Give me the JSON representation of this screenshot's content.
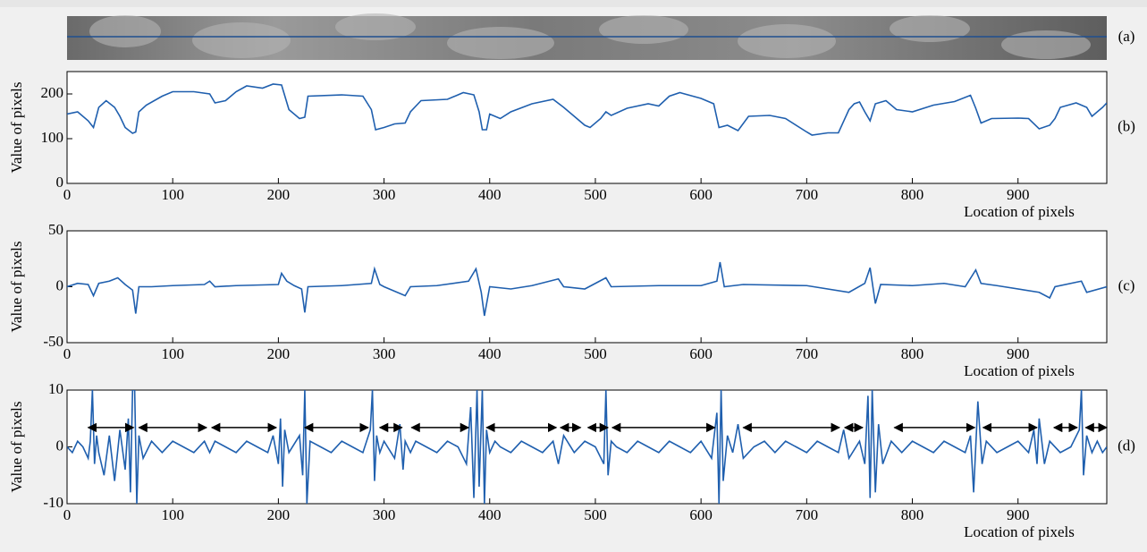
{
  "image_panel": {
    "label": "(a)"
  },
  "chart_data": [
    {
      "type": "line",
      "panel_label": "(b)",
      "x_label": "Location of pixels",
      "y_label": "Value of pixels",
      "xlim": [
        0,
        984
      ],
      "xticks": [
        0,
        100,
        200,
        300,
        400,
        500,
        600,
        700,
        800,
        900
      ],
      "ylim": [
        0,
        250
      ],
      "yticks": [
        0,
        100,
        200
      ],
      "x": [
        0,
        10,
        20,
        25,
        30,
        37,
        45,
        50,
        55,
        62,
        65,
        68,
        75,
        90,
        100,
        120,
        135,
        140,
        150,
        160,
        170,
        185,
        195,
        203,
        210,
        220,
        225,
        228,
        260,
        280,
        288,
        292,
        300,
        310,
        320,
        325,
        335,
        360,
        375,
        385,
        390,
        393,
        397,
        400,
        410,
        420,
        440,
        460,
        470,
        480,
        490,
        495,
        505,
        510,
        515,
        530,
        550,
        560,
        570,
        580,
        600,
        612,
        617,
        625,
        635,
        645,
        665,
        680,
        700,
        705,
        720,
        730,
        740,
        745,
        750,
        755,
        760,
        765,
        775,
        785,
        800,
        820,
        840,
        855,
        860,
        865,
        875,
        900,
        910,
        920,
        930,
        935,
        940,
        955,
        965,
        970,
        980,
        984
      ],
      "series": [
        {
          "name": "Value of pixels",
          "color": "#1f5fae",
          "values": [
            155,
            160,
            140,
            125,
            170,
            185,
            170,
            150,
            125,
            112,
            115,
            160,
            175,
            195,
            205,
            205,
            200,
            180,
            185,
            205,
            218,
            213,
            222,
            220,
            165,
            145,
            148,
            195,
            198,
            195,
            165,
            120,
            125,
            133,
            135,
            160,
            185,
            188,
            203,
            198,
            160,
            120,
            120,
            155,
            145,
            160,
            178,
            188,
            170,
            150,
            130,
            125,
            145,
            160,
            152,
            168,
            178,
            173,
            195,
            203,
            190,
            178,
            125,
            130,
            118,
            150,
            152,
            145,
            115,
            108,
            113,
            113,
            165,
            178,
            182,
            160,
            140,
            178,
            185,
            165,
            160,
            175,
            183,
            197,
            168,
            135,
            145,
            146,
            145,
            122,
            130,
            145,
            170,
            180,
            170,
            150,
            170,
            180
          ]
        }
      ]
    },
    {
      "type": "line",
      "panel_label": "(c)",
      "x_label": "Location of pixels",
      "y_label": "Value of pixels",
      "xlim": [
        0,
        984
      ],
      "xticks": [
        0,
        100,
        200,
        300,
        400,
        500,
        600,
        700,
        800,
        900
      ],
      "ylim": [
        -50,
        50
      ],
      "yticks": [
        -50,
        0,
        50
      ],
      "x": [
        0,
        10,
        20,
        25,
        30,
        40,
        48,
        55,
        62,
        65,
        68,
        80,
        100,
        130,
        135,
        140,
        160,
        200,
        203,
        208,
        215,
        222,
        225,
        228,
        260,
        288,
        291,
        296,
        300,
        320,
        325,
        350,
        380,
        387,
        392,
        395,
        400,
        420,
        440,
        465,
        470,
        490,
        510,
        515,
        560,
        600,
        615,
        618,
        622,
        640,
        700,
        740,
        755,
        760,
        765,
        770,
        800,
        830,
        850,
        860,
        865,
        880,
        920,
        930,
        935,
        960,
        965,
        984
      ],
      "series": [
        {
          "name": "Value of pixels",
          "color": "#1f5fae",
          "values": [
            0,
            3,
            2,
            -8,
            3,
            5,
            8,
            2,
            -3,
            -24,
            0,
            0,
            1,
            2,
            5,
            0,
            1,
            2,
            12,
            5,
            1,
            -2,
            -23,
            0,
            1,
            3,
            16,
            2,
            0,
            -8,
            0,
            1,
            5,
            16,
            -5,
            -26,
            0,
            -2,
            1,
            7,
            0,
            -2,
            8,
            0,
            1,
            1,
            5,
            22,
            0,
            2,
            1,
            -5,
            3,
            17,
            -15,
            2,
            1,
            3,
            0,
            15,
            3,
            1,
            -5,
            -10,
            0,
            5,
            -5,
            0
          ]
        }
      ]
    },
    {
      "type": "line",
      "panel_label": "(d)",
      "x_label": "Location of pixels",
      "y_label": "Value of pixels",
      "xlim": [
        0,
        984
      ],
      "xticks": [
        0,
        100,
        200,
        300,
        400,
        500,
        600,
        700,
        800,
        900
      ],
      "ylim": [
        -10,
        10
      ],
      "yticks": [
        -10,
        0,
        10
      ],
      "x": [
        0,
        5,
        10,
        15,
        20,
        22,
        24,
        26,
        28,
        30,
        35,
        40,
        45,
        50,
        55,
        58,
        60,
        62,
        64,
        66,
        68,
        72,
        80,
        90,
        100,
        110,
        120,
        130,
        135,
        140,
        150,
        160,
        170,
        180,
        190,
        195,
        200,
        202,
        204,
        206,
        210,
        220,
        223,
        225,
        227,
        230,
        240,
        250,
        260,
        270,
        280,
        287,
        289,
        291,
        293,
        296,
        300,
        310,
        315,
        318,
        320,
        325,
        330,
        340,
        350,
        360,
        370,
        378,
        382,
        385,
        388,
        390,
        393,
        395,
        397,
        400,
        405,
        410,
        420,
        430,
        440,
        450,
        460,
        465,
        470,
        480,
        490,
        500,
        508,
        510,
        512,
        515,
        520,
        530,
        540,
        550,
        560,
        570,
        580,
        590,
        600,
        610,
        615,
        617,
        619,
        621,
        625,
        630,
        635,
        640,
        650,
        660,
        670,
        680,
        690,
        700,
        710,
        720,
        730,
        735,
        740,
        750,
        755,
        758,
        760,
        762,
        765,
        768,
        772,
        780,
        790,
        800,
        810,
        820,
        830,
        840,
        850,
        855,
        858,
        862,
        866,
        870,
        880,
        890,
        900,
        910,
        915,
        918,
        920,
        925,
        930,
        940,
        950,
        958,
        960,
        962,
        965,
        970,
        975,
        980,
        984
      ],
      "series": [
        {
          "name": "Value of pixels",
          "color": "#1f5fae",
          "values": [
            0,
            -1,
            1,
            0,
            -2,
            1,
            10,
            -3,
            2,
            -1,
            -5,
            2,
            -6,
            3,
            -4,
            5,
            -8,
            10,
            10,
            -10,
            2,
            -2,
            1,
            -1,
            1,
            0,
            -1,
            1,
            -1,
            1,
            0,
            -1,
            1,
            0,
            -1,
            2,
            -3,
            5,
            -7,
            3,
            -1,
            2,
            -5,
            10,
            -10,
            1,
            0,
            -1,
            1,
            0,
            -1,
            3,
            10,
            -6,
            2,
            -1,
            1,
            -2,
            4,
            -4,
            1,
            -1,
            1,
            0,
            -1,
            1,
            0,
            -3,
            7,
            -9,
            10,
            -7,
            10,
            -10,
            3,
            -1,
            1,
            0,
            -1,
            1,
            0,
            -1,
            1,
            -3,
            2,
            -1,
            1,
            0,
            -3,
            10,
            -5,
            1,
            0,
            -1,
            1,
            0,
            -1,
            1,
            0,
            -1,
            1,
            -2,
            6,
            -10,
            10,
            -6,
            2,
            -1,
            4,
            -2,
            0,
            1,
            -1,
            1,
            0,
            -1,
            1,
            0,
            -1,
            3,
            -2,
            1,
            -3,
            9,
            -9,
            10,
            -8,
            4,
            -3,
            1,
            -1,
            1,
            0,
            -1,
            1,
            0,
            -1,
            2,
            -8,
            8,
            -3,
            1,
            -1,
            0,
            1,
            -1,
            3,
            -3,
            5,
            -3,
            1,
            -1,
            0,
            3,
            10,
            -5,
            2,
            -1,
            1,
            -1,
            0
          ]
        }
      ],
      "arrow_y": 3.4,
      "segments": [
        [
          20,
          63
        ],
        [
          68,
          132
        ],
        [
          137,
          198
        ],
        [
          225,
          285
        ],
        [
          296,
          317
        ],
        [
          326,
          380
        ],
        [
          397,
          463
        ],
        [
          467,
          486
        ],
        [
          493,
          512
        ],
        [
          516,
          613
        ],
        [
          640,
          731
        ],
        [
          736,
          753
        ],
        [
          783,
          859
        ],
        [
          867,
          918
        ],
        [
          934,
          956
        ],
        [
          964,
          984
        ]
      ]
    }
  ]
}
